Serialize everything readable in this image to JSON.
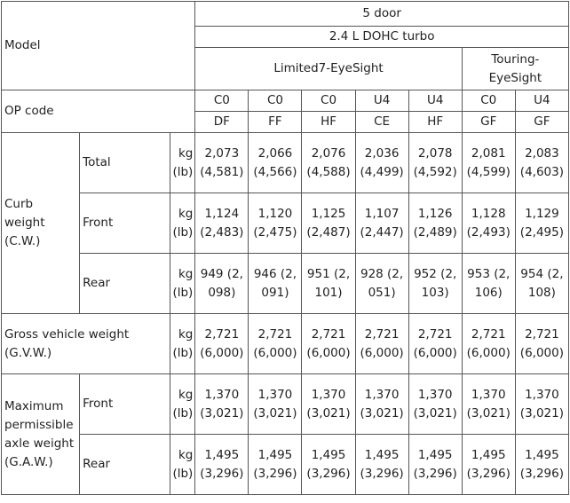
{
  "table": {
    "header": {
      "model_label": "Model",
      "body": "5 door",
      "engine": "2.4 L DOHC turbo",
      "grades": [
        {
          "label": "Limited7-EyeSight",
          "codes": [
            [
              "C0",
              "DF"
            ],
            [
              "C0",
              "FF"
            ],
            [
              "C0",
              "HF"
            ],
            [
              "U4",
              "CE"
            ],
            [
              "U4",
              "HF"
            ]
          ]
        },
        {
          "label": "Touring-EyeSight",
          "codes": [
            [
              "C0",
              "GF"
            ],
            [
              "U4",
              "GF"
            ]
          ]
        }
      ],
      "op_code_label": "OP code"
    },
    "sections": [
      {
        "label": "Curb weight (C.W.)",
        "rows": [
          {
            "label": "Total",
            "unit": "kg (lb)",
            "values": [
              "2,073 (4,581)",
              "2,066 (4,566)",
              "2,076 (4,588)",
              "2,036 (4,499)",
              "2,078 (4,592)",
              "2,081 (4,599)",
              "2,083 (4,603)"
            ]
          },
          {
            "label": "Front",
            "unit": "kg (lb)",
            "values": [
              "1,124 (2,483)",
              "1,120 (2,475)",
              "1,125 (2,487)",
              "1,107 (2,447)",
              "1,126 (2,489)",
              "1,128 (2,493)",
              "1,129 (2,495)"
            ]
          },
          {
            "label": "Rear",
            "unit": "kg (lb)",
            "values": [
              "949 (2,098)",
              "946 (2,091)",
              "951 (2,101)",
              "928 (2,051)",
              "952 (2,103)",
              "953 (2,106)",
              "954 (2,108)"
            ]
          }
        ]
      },
      {
        "label": "Gross vehicle weight (G.V.W.)",
        "rows": [
          {
            "unit": "kg (lb)",
            "values": [
              "2,721 (6,000)",
              "2,721 (6,000)",
              "2,721 (6,000)",
              "2,721 (6,000)",
              "2,721 (6,000)",
              "2,721 (6,000)",
              "2,721 (6,000)"
            ]
          }
        ]
      },
      {
        "label": "Maximum permissible axle weight (G.A.W.)",
        "rows": [
          {
            "label": "Front",
            "unit": "kg (lb)",
            "values": [
              "1,370 (3,021)",
              "1,370 (3,021)",
              "1,370 (3,021)",
              "1,370 (3,021)",
              "1,370 (3,021)",
              "1,370 (3,021)",
              "1,370 (3,021)"
            ]
          },
          {
            "label": "Rear",
            "unit": "kg (lb)",
            "values": [
              "1,495 (3,296)",
              "1,495 (3,296)",
              "1,495 (3,296)",
              "1,495 (3,296)",
              "1,495 (3,296)",
              "1,495 (3,296)",
              "1,495 (3,296)"
            ]
          }
        ]
      }
    ]
  }
}
